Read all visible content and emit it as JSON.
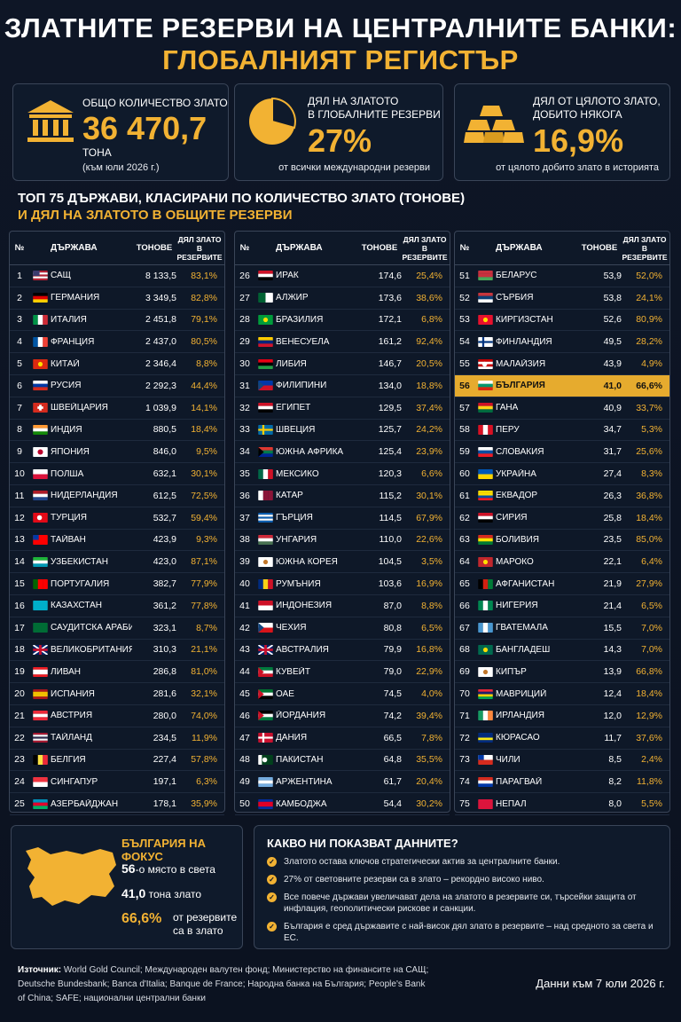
{
  "title": {
    "line1": "ЗЛАТНИТЕ РЕЗЕРВИ НА ЦЕНТРАЛНИТЕ БАНКИ:",
    "line2": "ГЛОБАЛНИЯТ РЕГИСТЪР"
  },
  "stats": {
    "total": {
      "label": "ОБЩО КОЛИЧЕСТВО ЗЛАТО",
      "value": "36 470,7",
      "unit": "ТОНА",
      "note": "(към юли 2026 г.)",
      "icon": "bank-icon"
    },
    "share_reserves": {
      "label1": "ДЯЛ НА ЗЛАТОТО",
      "label2": "В ГЛОБАЛНИТЕ РЕЗЕРВИ",
      "value": "27%",
      "note": "от всички международни резерви",
      "icon": "pie-chart-icon"
    },
    "share_mined": {
      "label1": "ДЯЛ ОТ ЦЯЛОТО ЗЛАТО,",
      "label2": "ДОБИТО НЯКОГА",
      "value": "16,9%",
      "note": "от цялото добито злато в историята",
      "icon": "gold-bars-icon"
    }
  },
  "section": {
    "line1": "ТОП 75 ДЪРЖАВИ, КЛАСИРАНИ ПО КОЛИЧЕСТВО ЗЛАТО (ТОНОВЕ)",
    "line2": "И ДЯЛ НА ЗЛАТОТО В ОБЩИТЕ РЕЗЕРВИ"
  },
  "table_headers": {
    "rank": "№",
    "country": "ДЪРЖАВА",
    "tons": "ТОНОВЕ",
    "pct": "ДЯЛ ЗЛАТО В РЕЗЕРВИТЕ"
  },
  "countries": [
    {
      "r": "1",
      "n": "САЩ",
      "t": "8 133,5",
      "p": "83,1%",
      "f": "us"
    },
    {
      "r": "2",
      "n": "ГЕРМАНИЯ",
      "t": "3 349,5",
      "p": "82,8%",
      "f": "de"
    },
    {
      "r": "3",
      "n": "ИТАЛИЯ",
      "t": "2 451,8",
      "p": "79,1%",
      "f": "it"
    },
    {
      "r": "4",
      "n": "ФРАНЦИЯ",
      "t": "2 437,0",
      "p": "80,5%",
      "f": "fr"
    },
    {
      "r": "5",
      "n": "КИТАЙ",
      "t": "2 346,4",
      "p": "8,8%",
      "f": "cn"
    },
    {
      "r": "6",
      "n": "РУСИЯ",
      "t": "2 292,3",
      "p": "44,4%",
      "f": "ru"
    },
    {
      "r": "7",
      "n": "ШВЕЙЦАРИЯ",
      "t": "1 039,9",
      "p": "14,1%",
      "f": "ch"
    },
    {
      "r": "8",
      "n": "ИНДИЯ",
      "t": "880,5",
      "p": "18,4%",
      "f": "in"
    },
    {
      "r": "9",
      "n": "ЯПОНИЯ",
      "t": "846,0",
      "p": "9,5%",
      "f": "jp"
    },
    {
      "r": "10",
      "n": "ПОЛША",
      "t": "632,1",
      "p": "30,1%",
      "f": "pl"
    },
    {
      "r": "11",
      "n": "НИДЕРЛАНДИЯ",
      "t": "612,5",
      "p": "72,5%",
      "f": "nl"
    },
    {
      "r": "12",
      "n": "ТУРЦИЯ",
      "t": "532,7",
      "p": "59,4%",
      "f": "tr"
    },
    {
      "r": "13",
      "n": "ТАЙВАН",
      "t": "423,9",
      "p": "9,3%",
      "f": "tw"
    },
    {
      "r": "14",
      "n": "УЗБЕКИСТАН",
      "t": "423,0",
      "p": "87,1%",
      "f": "uz"
    },
    {
      "r": "15",
      "n": "ПОРТУГАЛИЯ",
      "t": "382,7",
      "p": "77,9%",
      "f": "pt"
    },
    {
      "r": "16",
      "n": "КАЗАХСТАН",
      "t": "361,2",
      "p": "77,8%",
      "f": "kz"
    },
    {
      "r": "17",
      "n": "САУДИТСКА АРАБИЯ",
      "t": "323,1",
      "p": "8,7%",
      "f": "sa"
    },
    {
      "r": "18",
      "n": "ВЕЛИКОБРИТАНИЯ",
      "t": "310,3",
      "p": "21,1%",
      "f": "gb"
    },
    {
      "r": "19",
      "n": "ЛИВАН",
      "t": "286,8",
      "p": "81,0%",
      "f": "lb"
    },
    {
      "r": "20",
      "n": "ИСПАНИЯ",
      "t": "281,6",
      "p": "32,1%",
      "f": "es"
    },
    {
      "r": "21",
      "n": "АВСТРИЯ",
      "t": "280,0",
      "p": "74,0%",
      "f": "at"
    },
    {
      "r": "22",
      "n": "ТАЙЛАНД",
      "t": "234,5",
      "p": "11,9%",
      "f": "th"
    },
    {
      "r": "23",
      "n": "БЕЛГИЯ",
      "t": "227,4",
      "p": "57,8%",
      "f": "be"
    },
    {
      "r": "24",
      "n": "СИНГАПУР",
      "t": "197,1",
      "p": "6,3%",
      "f": "sg"
    },
    {
      "r": "25",
      "n": "АЗЕРБАЙДЖАН",
      "t": "178,1",
      "p": "35,9%",
      "f": "az"
    },
    {
      "r": "26",
      "n": "ИРАК",
      "t": "174,6",
      "p": "25,4%",
      "f": "iq"
    },
    {
      "r": "27",
      "n": "АЛЖИР",
      "t": "173,6",
      "p": "38,6%",
      "f": "dz"
    },
    {
      "r": "28",
      "n": "БРАЗИЛИЯ",
      "t": "172,1",
      "p": "6,8%",
      "f": "br"
    },
    {
      "r": "29",
      "n": "ВЕНЕСУЕЛА",
      "t": "161,2",
      "p": "92,4%",
      "f": "ve"
    },
    {
      "r": "30",
      "n": "ЛИБИЯ",
      "t": "146,7",
      "p": "20,5%",
      "f": "ly"
    },
    {
      "r": "31",
      "n": "ФИЛИПИНИ",
      "t": "134,0",
      "p": "18,8%",
      "f": "ph"
    },
    {
      "r": "32",
      "n": "ЕГИПЕТ",
      "t": "129,5",
      "p": "37,4%",
      "f": "eg"
    },
    {
      "r": "33",
      "n": "ШВЕЦИЯ",
      "t": "125,7",
      "p": "24,2%",
      "f": "se"
    },
    {
      "r": "34",
      "n": "ЮЖНА АФРИКА",
      "t": "125,4",
      "p": "23,9%",
      "f": "za"
    },
    {
      "r": "35",
      "n": "МЕКСИКО",
      "t": "120,3",
      "p": "6,6%",
      "f": "mx"
    },
    {
      "r": "36",
      "n": "КАТАР",
      "t": "115,2",
      "p": "30,1%",
      "f": "qa"
    },
    {
      "r": "37",
      "n": "ГЪРЦИЯ",
      "t": "114,5",
      "p": "67,9%",
      "f": "gr"
    },
    {
      "r": "38",
      "n": "УНГАРИЯ",
      "t": "110,0",
      "p": "22,6%",
      "f": "hu"
    },
    {
      "r": "39",
      "n": "ЮЖНА КОРЕЯ",
      "t": "104,5",
      "p": "3,5%",
      "f": "kr"
    },
    {
      "r": "40",
      "n": "РУМЪНИЯ",
      "t": "103,6",
      "p": "16,9%",
      "f": "ro"
    },
    {
      "r": "41",
      "n": "ИНДОНЕЗИЯ",
      "t": "87,0",
      "p": "8,8%",
      "f": "id"
    },
    {
      "r": "42",
      "n": "ЧЕХИЯ",
      "t": "80,8",
      "p": "6,5%",
      "f": "cz"
    },
    {
      "r": "43",
      "n": "АВСТРАЛИЯ",
      "t": "79,9",
      "p": "16,8%",
      "f": "au"
    },
    {
      "r": "44",
      "n": "КУВЕЙТ",
      "t": "79,0",
      "p": "22,9%",
      "f": "kw"
    },
    {
      "r": "45",
      "n": "ОАЕ",
      "t": "74,5",
      "p": "4,0%",
      "f": "ae"
    },
    {
      "r": "46",
      "n": "ЙОРДАНИЯ",
      "t": "74,2",
      "p": "39,4%",
      "f": "jo"
    },
    {
      "r": "47",
      "n": "ДАНИЯ",
      "t": "66,5",
      "p": "7,8%",
      "f": "dk"
    },
    {
      "r": "48",
      "n": "ПАКИСТАН",
      "t": "64,8",
      "p": "35,5%",
      "f": "pk"
    },
    {
      "r": "49",
      "n": "АРЖЕНТИНА",
      "t": "61,7",
      "p": "20,4%",
      "f": "ar"
    },
    {
      "r": "50",
      "n": "КАМБОДЖА",
      "t": "54,4",
      "p": "30,2%",
      "f": "kh"
    },
    {
      "r": "51",
      "n": "БЕЛАРУС",
      "t": "53,9",
      "p": "52,0%",
      "f": "by"
    },
    {
      "r": "52",
      "n": "СЪРБИЯ",
      "t": "53,8",
      "p": "24,1%",
      "f": "rs"
    },
    {
      "r": "53",
      "n": "КИРГИЗСТАН",
      "t": "52,6",
      "p": "80,9%",
      "f": "kg"
    },
    {
      "r": "54",
      "n": "ФИНЛАНДИЯ",
      "t": "49,5",
      "p": "28,2%",
      "f": "fi"
    },
    {
      "r": "55",
      "n": "МАЛАЙЗИЯ",
      "t": "43,9",
      "p": "4,9%",
      "f": "my"
    },
    {
      "r": "56",
      "n": "БЪЛГАРИЯ",
      "t": "41,0",
      "p": "66,6%",
      "f": "bg",
      "hl": true
    },
    {
      "r": "57",
      "n": "ГАНА",
      "t": "40,9",
      "p": "33,7%",
      "f": "gh"
    },
    {
      "r": "58",
      "n": "ПЕРУ",
      "t": "34,7",
      "p": "5,3%",
      "f": "pe"
    },
    {
      "r": "59",
      "n": "СЛОВАКИЯ",
      "t": "31,7",
      "p": "25,6%",
      "f": "sk"
    },
    {
      "r": "60",
      "n": "УКРАЙНА",
      "t": "27,4",
      "p": "8,3%",
      "f": "ua"
    },
    {
      "r": "61",
      "n": "ЕКВАДОР",
      "t": "26,3",
      "p": "36,8%",
      "f": "ec"
    },
    {
      "r": "62",
      "n": "СИРИЯ",
      "t": "25,8",
      "p": "18,4%",
      "f": "sy"
    },
    {
      "r": "63",
      "n": "БОЛИВИЯ",
      "t": "23,5",
      "p": "85,0%",
      "f": "bo"
    },
    {
      "r": "64",
      "n": "МАРОКО",
      "t": "22,1",
      "p": "6,4%",
      "f": "ma"
    },
    {
      "r": "65",
      "n": "АФГАНИСТАН",
      "t": "21,9",
      "p": "27,9%",
      "f": "af"
    },
    {
      "r": "66",
      "n": "НИГЕРИЯ",
      "t": "21,4",
      "p": "6,5%",
      "f": "ng"
    },
    {
      "r": "67",
      "n": "ГВАТЕМАЛА",
      "t": "15,5",
      "p": "7,0%",
      "f": "gt"
    },
    {
      "r": "68",
      "n": "БАНГЛАДЕШ",
      "t": "14,3",
      "p": "7,0%",
      "f": "bd"
    },
    {
      "r": "69",
      "n": "КИПЪР",
      "t": "13,9",
      "p": "66,8%",
      "f": "cy"
    },
    {
      "r": "70",
      "n": "МАВРИЦИЙ",
      "t": "12,4",
      "p": "18,4%",
      "f": "mu"
    },
    {
      "r": "71",
      "n": "ИРЛАНДИЯ",
      "t": "12,0",
      "p": "12,9%",
      "f": "ie"
    },
    {
      "r": "72",
      "n": "КЮРАСАО",
      "t": "11,7",
      "p": "37,6%",
      "f": "cw"
    },
    {
      "r": "73",
      "n": "ЧИЛИ",
      "t": "8,5",
      "p": "2,4%",
      "f": "cl"
    },
    {
      "r": "74",
      "n": "ПАРАГВАЙ",
      "t": "8,2",
      "p": "11,8%",
      "f": "py"
    },
    {
      "r": "75",
      "n": "НЕПАЛ",
      "t": "8,0",
      "p": "5,5%",
      "f": "np"
    }
  ],
  "focus": {
    "title": "БЪЛГАРИЯ НА ФОКУС",
    "rank_value": "56",
    "rank_text": "-о място в света",
    "tons_value": "41,0",
    "tons_text": "тона злато",
    "pct_value": "66,6%",
    "pct_text1": "от резервите",
    "pct_text2": "са в злато"
  },
  "insights": {
    "title": "КАКВО НИ ПОКАЗВАТ ДАННИТЕ?",
    "items": [
      "Златото остава ключов стратегически актив за централните банки.",
      "27% от световните резерви са в злато – рекордно високо ниво.",
      "Все повече държави увеличават дела на златото в резервите си, търсейки защита от инфлация, геополитически рискове и санкции.",
      "България е сред държавите с най-висок дял злато в резервите – над средното за света и ЕС."
    ]
  },
  "source": {
    "label": "Източник:",
    "text": "World Gold Council; Международен валутен фонд; Министерство на финансите на САЩ; Deutsche Bundesbank; Banca d'Italia; Banque de France; Народна банка на България; People's Bank of China; SAFE; национални централни банки"
  },
  "date": "Данни към 7 юли 2026 г.",
  "colors": {
    "gold": "#f2b233",
    "background": "#0d1524",
    "highlight": "#e6ab2e"
  }
}
